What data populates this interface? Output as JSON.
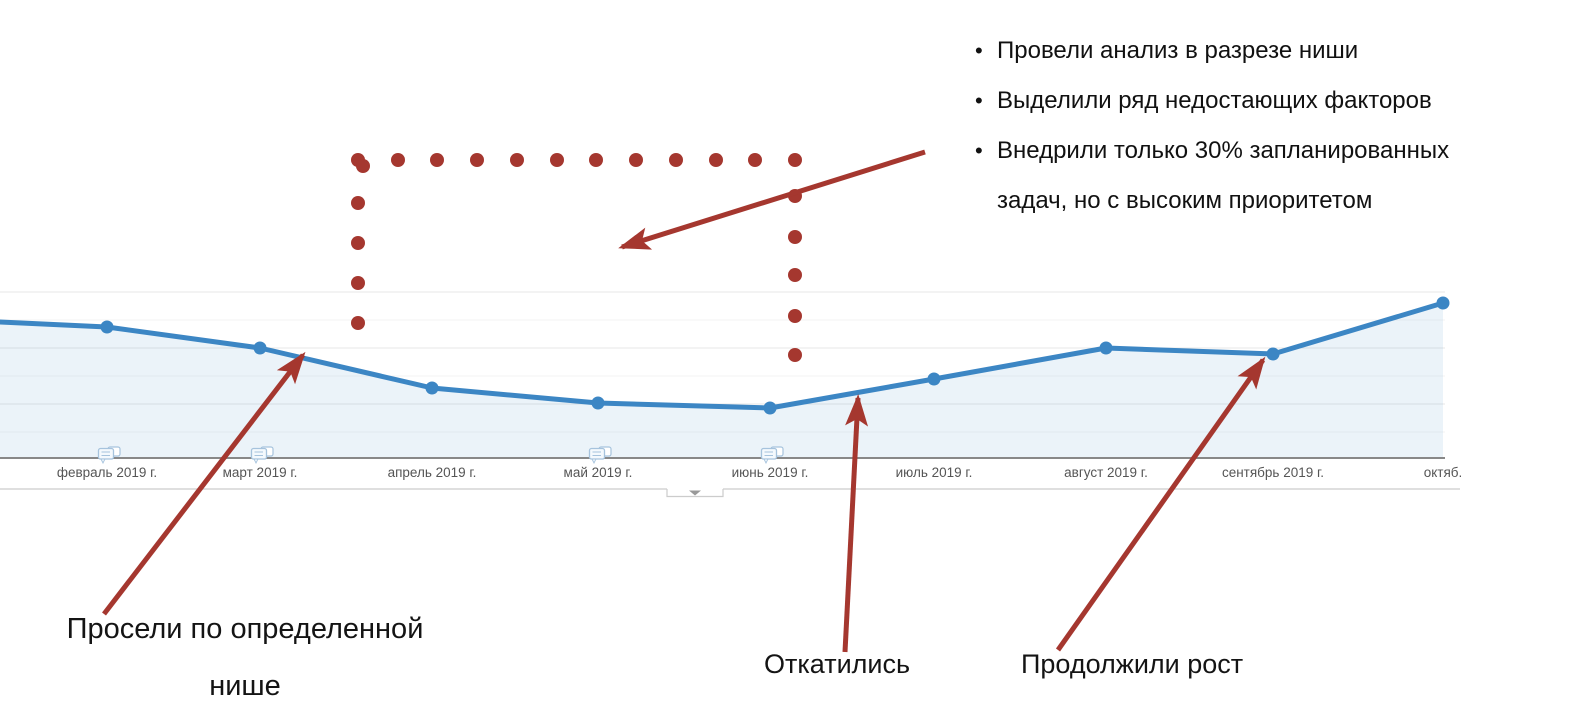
{
  "colors": {
    "annotation": "#A5372F",
    "line": "#3C86C4",
    "fill_opacity": "0.10",
    "axis": "#888888",
    "grid_major": "#E7E7E7",
    "grid_minor": "#F3F3F3",
    "tick_label": "#555555",
    "divider": "#CCCCCC",
    "chevron": "#999999",
    "bubble_stroke": "#A6C3DD",
    "bubble_fill": "#F4F9FD",
    "text": "#111111"
  },
  "chart_data": {
    "type": "area",
    "title": "",
    "xlabel": "",
    "ylabel": "",
    "x_labels": [
      "февраль 2019 г.",
      "март 2019 г.",
      "апрель 2019 г.",
      "май 2019 г.",
      "июнь 2019 г.",
      "июль 2019 г.",
      "август 2019 г.",
      "сентябрь 2019 г.",
      "октяб."
    ],
    "values": [
      131,
      110,
      70,
      55,
      50,
      79,
      110,
      104,
      155
    ],
    "edge_start_value": 136,
    "ylim": [
      0,
      168
    ],
    "grid": true,
    "legend": "none",
    "annotated_months": [
      "февраль 2019 г.",
      "март 2019 г.",
      "май 2019 г.",
      "июнь 2019 г."
    ]
  },
  "takeaways": [
    "Провели анализ в разрезе ниши",
    "Выделили ряд недостающих факторов",
    "Внедрили только 30% запланированных задач, но с высоким приоритетом"
  ],
  "labels": {
    "drop": "Просели по определенной нише",
    "rollback": "Откатились",
    "growth": "Продолжили рост"
  }
}
